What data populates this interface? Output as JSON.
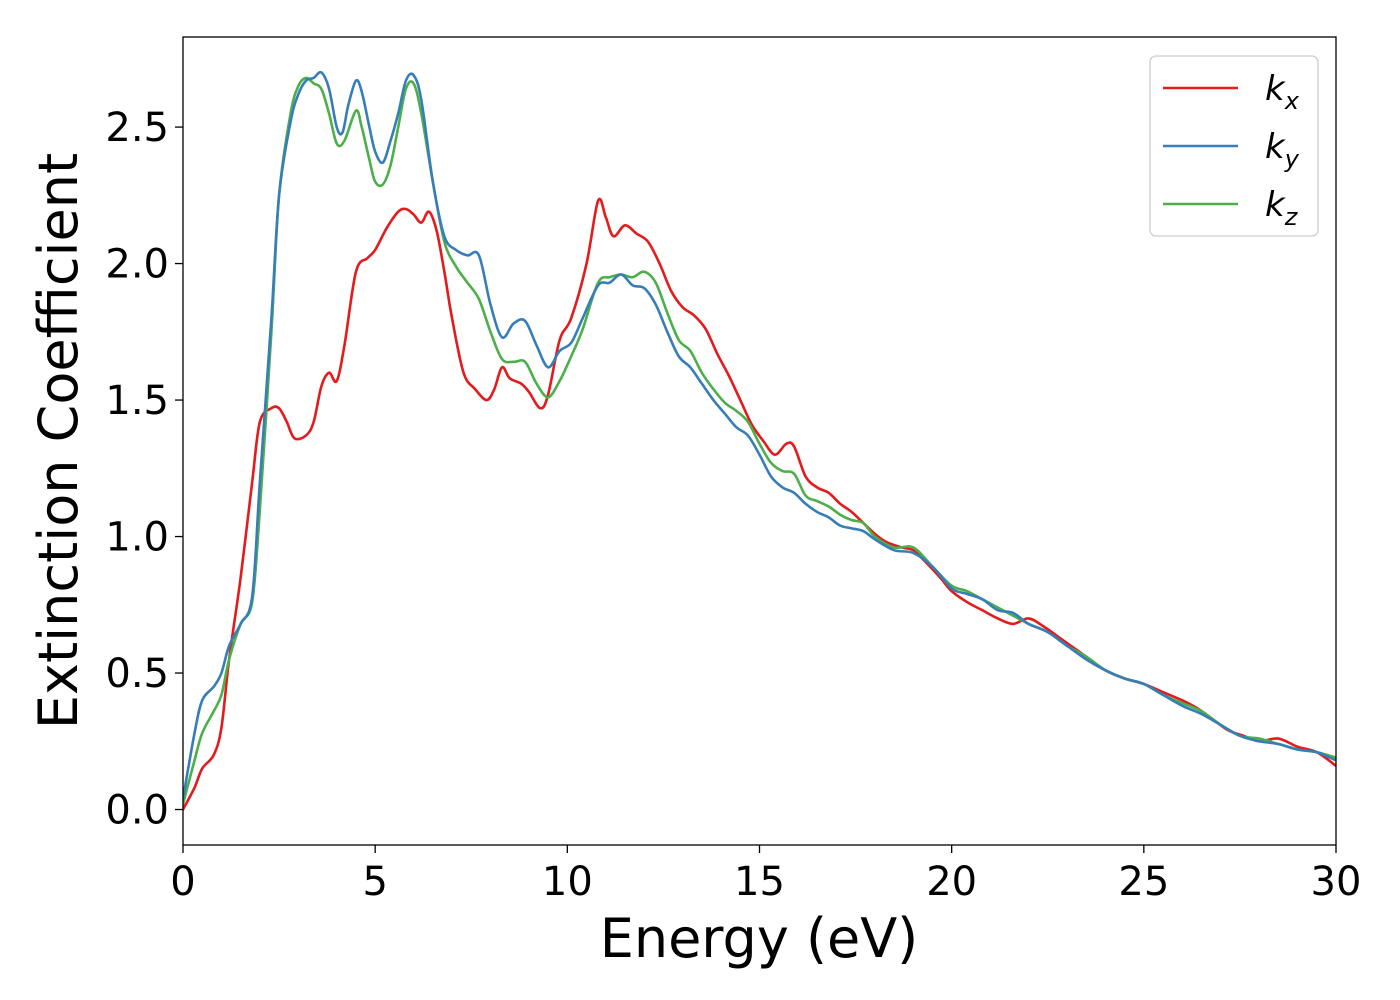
{
  "chart_data": {
    "type": "line",
    "title": "",
    "xlabel": "Energy (eV)",
    "ylabel": "Extinction Coefficient",
    "xlim": [
      0,
      30
    ],
    "ylim": [
      -0.13,
      2.83
    ],
    "xticks": [
      0,
      5,
      10,
      15,
      20,
      25,
      30
    ],
    "yticks": [
      0.0,
      0.5,
      1.0,
      1.5,
      2.0,
      2.5
    ],
    "xtick_labels": [
      "0",
      "5",
      "10",
      "15",
      "20",
      "25",
      "30"
    ],
    "ytick_labels": [
      "0.0",
      "0.5",
      "1.0",
      "1.5",
      "2.0",
      "2.5"
    ],
    "grid": false,
    "legend_position": "top-right",
    "series": [
      {
        "name": "k",
        "subscript": "x",
        "color": "#e41a1c",
        "points": [
          [
            0,
            0.0
          ],
          [
            0.3,
            0.08
          ],
          [
            0.5,
            0.15
          ],
          [
            0.8,
            0.2
          ],
          [
            1.0,
            0.3
          ],
          [
            1.2,
            0.55
          ],
          [
            1.5,
            0.85
          ],
          [
            1.8,
            1.2
          ],
          [
            2.0,
            1.42
          ],
          [
            2.3,
            1.47
          ],
          [
            2.5,
            1.47
          ],
          [
            2.7,
            1.42
          ],
          [
            2.9,
            1.36
          ],
          [
            3.2,
            1.37
          ],
          [
            3.4,
            1.42
          ],
          [
            3.6,
            1.55
          ],
          [
            3.8,
            1.6
          ],
          [
            4.0,
            1.57
          ],
          [
            4.2,
            1.7
          ],
          [
            4.5,
            1.97
          ],
          [
            4.8,
            2.02
          ],
          [
            5.0,
            2.05
          ],
          [
            5.3,
            2.13
          ],
          [
            5.6,
            2.19
          ],
          [
            5.8,
            2.2
          ],
          [
            6.0,
            2.18
          ],
          [
            6.2,
            2.15
          ],
          [
            6.4,
            2.19
          ],
          [
            6.6,
            2.12
          ],
          [
            6.8,
            1.97
          ],
          [
            7.0,
            1.8
          ],
          [
            7.3,
            1.6
          ],
          [
            7.6,
            1.54
          ],
          [
            7.9,
            1.5
          ],
          [
            8.1,
            1.54
          ],
          [
            8.3,
            1.62
          ],
          [
            8.5,
            1.58
          ],
          [
            8.8,
            1.56
          ],
          [
            9.0,
            1.53
          ],
          [
            9.3,
            1.47
          ],
          [
            9.5,
            1.52
          ],
          [
            9.8,
            1.72
          ],
          [
            10.1,
            1.8
          ],
          [
            10.5,
            2.0
          ],
          [
            10.8,
            2.23
          ],
          [
            11.0,
            2.17
          ],
          [
            11.2,
            2.1
          ],
          [
            11.5,
            2.14
          ],
          [
            11.8,
            2.11
          ],
          [
            12.1,
            2.08
          ],
          [
            12.4,
            2.0
          ],
          [
            12.7,
            1.9
          ],
          [
            13.0,
            1.84
          ],
          [
            13.3,
            1.81
          ],
          [
            13.6,
            1.76
          ],
          [
            13.9,
            1.67
          ],
          [
            14.2,
            1.59
          ],
          [
            14.5,
            1.5
          ],
          [
            14.8,
            1.41
          ],
          [
            15.1,
            1.35
          ],
          [
            15.4,
            1.3
          ],
          [
            15.7,
            1.34
          ],
          [
            15.9,
            1.33
          ],
          [
            16.2,
            1.22
          ],
          [
            16.5,
            1.18
          ],
          [
            16.8,
            1.16
          ],
          [
            17.1,
            1.12
          ],
          [
            17.4,
            1.09
          ],
          [
            17.7,
            1.05
          ],
          [
            18.0,
            1.01
          ],
          [
            18.3,
            0.98
          ],
          [
            18.7,
            0.96
          ],
          [
            19.0,
            0.95
          ],
          [
            19.3,
            0.91
          ],
          [
            19.7,
            0.85
          ],
          [
            20.0,
            0.8
          ],
          [
            20.4,
            0.76
          ],
          [
            20.8,
            0.73
          ],
          [
            21.2,
            0.7
          ],
          [
            21.6,
            0.68
          ],
          [
            22.0,
            0.7
          ],
          [
            22.4,
            0.67
          ],
          [
            22.8,
            0.63
          ],
          [
            23.2,
            0.59
          ],
          [
            23.6,
            0.55
          ],
          [
            24.0,
            0.51
          ],
          [
            24.5,
            0.48
          ],
          [
            25.0,
            0.46
          ],
          [
            25.5,
            0.43
          ],
          [
            26.0,
            0.4
          ],
          [
            26.4,
            0.37
          ],
          [
            26.8,
            0.33
          ],
          [
            27.2,
            0.29
          ],
          [
            27.6,
            0.27
          ],
          [
            28.0,
            0.25
          ],
          [
            28.5,
            0.26
          ],
          [
            29.0,
            0.23
          ],
          [
            29.5,
            0.21
          ],
          [
            30.0,
            0.16
          ]
        ]
      },
      {
        "name": "k",
        "subscript": "y",
        "color": "#377eb8",
        "points": [
          [
            0,
            0.04
          ],
          [
            0.3,
            0.28
          ],
          [
            0.5,
            0.4
          ],
          [
            0.8,
            0.45
          ],
          [
            1.0,
            0.5
          ],
          [
            1.2,
            0.6
          ],
          [
            1.5,
            0.68
          ],
          [
            1.8,
            0.78
          ],
          [
            2.0,
            1.2
          ],
          [
            2.3,
            1.8
          ],
          [
            2.5,
            2.25
          ],
          [
            2.8,
            2.52
          ],
          [
            3.0,
            2.62
          ],
          [
            3.2,
            2.67
          ],
          [
            3.4,
            2.68
          ],
          [
            3.6,
            2.7
          ],
          [
            3.8,
            2.64
          ],
          [
            4.0,
            2.5
          ],
          [
            4.15,
            2.48
          ],
          [
            4.3,
            2.58
          ],
          [
            4.5,
            2.67
          ],
          [
            4.65,
            2.63
          ],
          [
            4.85,
            2.5
          ],
          [
            5.0,
            2.41
          ],
          [
            5.2,
            2.37
          ],
          [
            5.4,
            2.45
          ],
          [
            5.6,
            2.55
          ],
          [
            5.8,
            2.67
          ],
          [
            6.0,
            2.69
          ],
          [
            6.2,
            2.6
          ],
          [
            6.5,
            2.3
          ],
          [
            6.8,
            2.1
          ],
          [
            7.1,
            2.05
          ],
          [
            7.4,
            2.03
          ],
          [
            7.7,
            2.03
          ],
          [
            8.0,
            1.85
          ],
          [
            8.3,
            1.73
          ],
          [
            8.6,
            1.78
          ],
          [
            8.9,
            1.79
          ],
          [
            9.2,
            1.7
          ],
          [
            9.5,
            1.62
          ],
          [
            9.8,
            1.68
          ],
          [
            10.1,
            1.71
          ],
          [
            10.4,
            1.8
          ],
          [
            10.8,
            1.92
          ],
          [
            11.1,
            1.93
          ],
          [
            11.4,
            1.96
          ],
          [
            11.7,
            1.92
          ],
          [
            12.0,
            1.91
          ],
          [
            12.3,
            1.85
          ],
          [
            12.6,
            1.75
          ],
          [
            12.9,
            1.66
          ],
          [
            13.2,
            1.62
          ],
          [
            13.5,
            1.56
          ],
          [
            13.8,
            1.5
          ],
          [
            14.1,
            1.45
          ],
          [
            14.4,
            1.4
          ],
          [
            14.7,
            1.37
          ],
          [
            15.0,
            1.3
          ],
          [
            15.3,
            1.22
          ],
          [
            15.6,
            1.18
          ],
          [
            15.9,
            1.16
          ],
          [
            16.2,
            1.12
          ],
          [
            16.5,
            1.09
          ],
          [
            16.8,
            1.07
          ],
          [
            17.1,
            1.04
          ],
          [
            17.4,
            1.03
          ],
          [
            17.7,
            1.02
          ],
          [
            18.0,
            0.99
          ],
          [
            18.5,
            0.95
          ],
          [
            19.0,
            0.94
          ],
          [
            19.5,
            0.89
          ],
          [
            20.0,
            0.81
          ],
          [
            20.4,
            0.79
          ],
          [
            20.8,
            0.77
          ],
          [
            21.2,
            0.73
          ],
          [
            21.6,
            0.72
          ],
          [
            22.0,
            0.68
          ],
          [
            22.5,
            0.65
          ],
          [
            23.0,
            0.6
          ],
          [
            23.5,
            0.55
          ],
          [
            24.0,
            0.51
          ],
          [
            24.5,
            0.48
          ],
          [
            25.0,
            0.46
          ],
          [
            25.5,
            0.42
          ],
          [
            26.0,
            0.38
          ],
          [
            26.5,
            0.35
          ],
          [
            27.0,
            0.31
          ],
          [
            27.5,
            0.27
          ],
          [
            28.0,
            0.25
          ],
          [
            28.5,
            0.24
          ],
          [
            29.0,
            0.22
          ],
          [
            29.5,
            0.21
          ],
          [
            30.0,
            0.18
          ]
        ]
      },
      {
        "name": "k",
        "subscript": "z",
        "color": "#4daf4a",
        "points": [
          [
            0,
            0.02
          ],
          [
            0.3,
            0.18
          ],
          [
            0.5,
            0.28
          ],
          [
            0.8,
            0.36
          ],
          [
            1.0,
            0.42
          ],
          [
            1.2,
            0.55
          ],
          [
            1.5,
            0.68
          ],
          [
            1.8,
            0.76
          ],
          [
            2.0,
            1.1
          ],
          [
            2.3,
            1.75
          ],
          [
            2.5,
            2.25
          ],
          [
            2.8,
            2.55
          ],
          [
            3.0,
            2.65
          ],
          [
            3.2,
            2.68
          ],
          [
            3.4,
            2.66
          ],
          [
            3.6,
            2.64
          ],
          [
            3.8,
            2.55
          ],
          [
            4.0,
            2.44
          ],
          [
            4.2,
            2.45
          ],
          [
            4.5,
            2.56
          ],
          [
            4.65,
            2.5
          ],
          [
            4.85,
            2.38
          ],
          [
            5.0,
            2.3
          ],
          [
            5.2,
            2.29
          ],
          [
            5.4,
            2.36
          ],
          [
            5.6,
            2.5
          ],
          [
            5.8,
            2.64
          ],
          [
            6.0,
            2.66
          ],
          [
            6.2,
            2.55
          ],
          [
            6.5,
            2.3
          ],
          [
            6.8,
            2.08
          ],
          [
            7.1,
            1.99
          ],
          [
            7.4,
            1.93
          ],
          [
            7.7,
            1.87
          ],
          [
            8.0,
            1.75
          ],
          [
            8.3,
            1.65
          ],
          [
            8.6,
            1.64
          ],
          [
            8.9,
            1.64
          ],
          [
            9.2,
            1.56
          ],
          [
            9.5,
            1.51
          ],
          [
            9.8,
            1.57
          ],
          [
            10.1,
            1.66
          ],
          [
            10.4,
            1.76
          ],
          [
            10.8,
            1.93
          ],
          [
            11.1,
            1.95
          ],
          [
            11.4,
            1.96
          ],
          [
            11.7,
            1.95
          ],
          [
            12.0,
            1.97
          ],
          [
            12.3,
            1.93
          ],
          [
            12.6,
            1.82
          ],
          [
            12.9,
            1.72
          ],
          [
            13.2,
            1.68
          ],
          [
            13.5,
            1.6
          ],
          [
            13.8,
            1.54
          ],
          [
            14.1,
            1.49
          ],
          [
            14.4,
            1.46
          ],
          [
            14.7,
            1.42
          ],
          [
            15.0,
            1.34
          ],
          [
            15.3,
            1.27
          ],
          [
            15.6,
            1.24
          ],
          [
            15.9,
            1.23
          ],
          [
            16.2,
            1.15
          ],
          [
            16.5,
            1.13
          ],
          [
            16.8,
            1.11
          ],
          [
            17.1,
            1.08
          ],
          [
            17.4,
            1.06
          ],
          [
            17.7,
            1.05
          ],
          [
            18.0,
            1.0
          ],
          [
            18.5,
            0.96
          ],
          [
            19.0,
            0.96
          ],
          [
            19.5,
            0.89
          ],
          [
            20.0,
            0.82
          ],
          [
            20.4,
            0.8
          ],
          [
            20.8,
            0.77
          ],
          [
            21.2,
            0.74
          ],
          [
            21.6,
            0.71
          ],
          [
            22.0,
            0.68
          ],
          [
            22.5,
            0.65
          ],
          [
            23.0,
            0.6
          ],
          [
            23.5,
            0.56
          ],
          [
            24.0,
            0.51
          ],
          [
            24.5,
            0.48
          ],
          [
            25.0,
            0.46
          ],
          [
            25.5,
            0.42
          ],
          [
            26.0,
            0.39
          ],
          [
            26.5,
            0.36
          ],
          [
            27.0,
            0.31
          ],
          [
            27.5,
            0.27
          ],
          [
            28.0,
            0.26
          ],
          [
            28.5,
            0.24
          ],
          [
            29.0,
            0.22
          ],
          [
            29.5,
            0.21
          ],
          [
            30.0,
            0.19
          ]
        ]
      }
    ]
  }
}
